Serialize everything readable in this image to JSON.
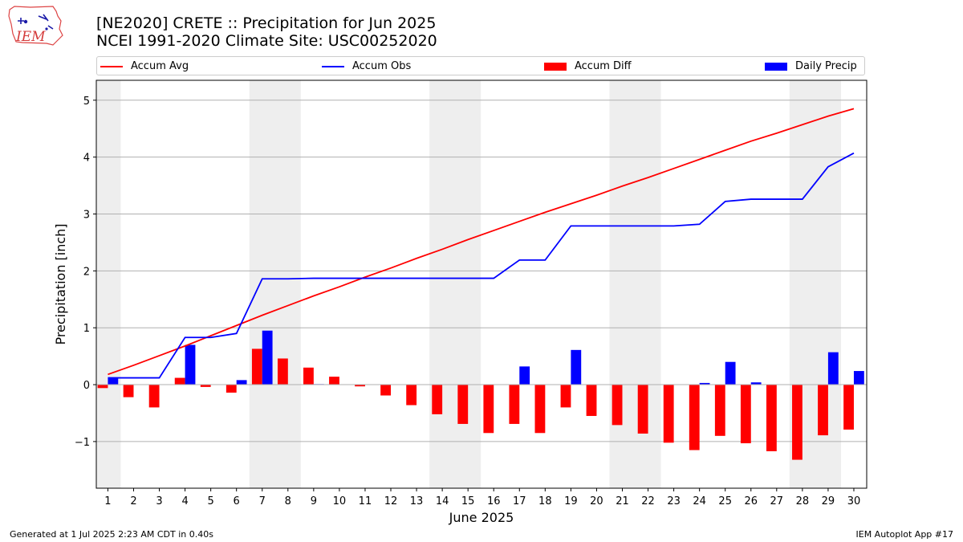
{
  "header": {
    "title": "[NE2020] CRETE :: Precipitation for Jun 2025",
    "subtitle": "NCEI 1991-2020 Climate Site: USC00252020"
  },
  "logo": {
    "text": "IEM"
  },
  "legend": {
    "items": [
      {
        "label": "Accum Avg",
        "color": "#ff0000",
        "kind": "line"
      },
      {
        "label": "Accum Obs",
        "color": "#0000ff",
        "kind": "line"
      },
      {
        "label": "Accum Diff",
        "color": "#ff0000",
        "kind": "bar"
      },
      {
        "label": "Daily Precip",
        "color": "#0000ff",
        "kind": "bar"
      }
    ]
  },
  "footer": {
    "left": "Generated at 1 Jul 2025 2:23 AM CDT in 0.40s",
    "right": "IEM Autoplot App #17"
  },
  "chart_data": {
    "type": "bar",
    "title": "[NE2020] CRETE :: Precipitation for Jun 2025",
    "xlabel": "June 2025",
    "ylabel": "Precipitation [inch]",
    "ylim": [
      -1.82,
      5.35
    ],
    "yticks": [
      -1,
      0,
      1,
      2,
      3,
      4,
      5
    ],
    "ytick_labels": [
      "−1",
      "0",
      "1",
      "2",
      "3",
      "4",
      "5"
    ],
    "grid": true,
    "legend_position": "top",
    "weekend_shading": [
      [
        1,
        1
      ],
      [
        7,
        8
      ],
      [
        14,
        15
      ],
      [
        21,
        22
      ],
      [
        28,
        29
      ]
    ],
    "x": [
      1,
      2,
      3,
      4,
      5,
      6,
      7,
      8,
      9,
      10,
      11,
      12,
      13,
      14,
      15,
      16,
      17,
      18,
      19,
      20,
      21,
      22,
      23,
      24,
      25,
      26,
      27,
      28,
      29,
      30
    ],
    "series": [
      {
        "name": "Accum Avg",
        "kind": "line",
        "color": "#ff0000",
        "values": [
          0.18,
          0.34,
          0.51,
          0.68,
          0.86,
          1.04,
          1.22,
          1.39,
          1.56,
          1.72,
          1.89,
          2.05,
          2.22,
          2.38,
          2.55,
          2.71,
          2.87,
          3.03,
          3.18,
          3.33,
          3.49,
          3.64,
          3.8,
          3.96,
          4.12,
          4.28,
          4.42,
          4.57,
          4.72,
          4.85
        ]
      },
      {
        "name": "Accum Obs",
        "kind": "line",
        "color": "#0000ff",
        "values": [
          0.12,
          0.12,
          0.12,
          0.83,
          0.83,
          0.9,
          1.86,
          1.86,
          1.87,
          1.87,
          1.87,
          1.87,
          1.87,
          1.87,
          1.87,
          1.87,
          2.19,
          2.19,
          2.79,
          2.79,
          2.79,
          2.79,
          2.79,
          2.82,
          3.22,
          3.26,
          3.26,
          3.26,
          3.83,
          4.07
        ]
      },
      {
        "name": "Accum Diff",
        "kind": "bar",
        "color": "#ff0000",
        "values": [
          -0.06,
          -0.22,
          -0.4,
          0.12,
          -0.04,
          -0.14,
          0.63,
          0.46,
          0.3,
          0.14,
          -0.03,
          -0.19,
          -0.36,
          -0.52,
          -0.69,
          -0.85,
          -0.69,
          -0.85,
          -0.4,
          -0.55,
          -0.71,
          -0.86,
          -1.02,
          -1.15,
          -0.9,
          -1.03,
          -1.17,
          -1.32,
          -0.89,
          -0.79
        ]
      },
      {
        "name": "Daily Precip",
        "kind": "bar",
        "color": "#0000ff",
        "values": [
          0.12,
          0,
          0,
          0.7,
          0,
          0.08,
          0.95,
          0,
          0.01,
          0,
          0,
          0,
          0,
          0,
          0,
          0,
          0.32,
          0,
          0.61,
          0,
          0,
          0,
          0,
          0.03,
          0.4,
          0.04,
          0,
          0,
          0.57,
          0.24
        ]
      }
    ]
  }
}
